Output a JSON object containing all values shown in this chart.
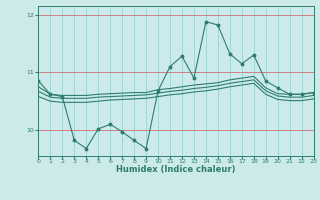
{
  "xlabel": "Humidex (Indice chaleur)",
  "bg_color": "#cceaea",
  "line_color": "#2e7d6e",
  "grid_color_h": "#d08080",
  "grid_color_v": "#90cccc",
  "x": [
    0,
    1,
    2,
    3,
    4,
    5,
    6,
    7,
    8,
    9,
    10,
    11,
    12,
    13,
    14,
    15,
    16,
    17,
    18,
    19,
    20,
    21,
    22,
    23
  ],
  "y_main": [
    10.85,
    10.62,
    10.58,
    9.82,
    9.68,
    10.02,
    10.1,
    9.97,
    9.82,
    9.68,
    10.68,
    11.1,
    11.28,
    10.9,
    11.88,
    11.82,
    11.32,
    11.15,
    11.3,
    10.85,
    10.73,
    10.62,
    10.62,
    10.65
  ],
  "y_band1": [
    10.75,
    10.62,
    10.6,
    10.6,
    10.6,
    10.62,
    10.63,
    10.64,
    10.65,
    10.65,
    10.7,
    10.72,
    10.75,
    10.78,
    10.8,
    10.82,
    10.87,
    10.9,
    10.93,
    10.73,
    10.63,
    10.62,
    10.62,
    10.65
  ],
  "y_band2": [
    10.67,
    10.57,
    10.55,
    10.55,
    10.55,
    10.57,
    10.58,
    10.59,
    10.6,
    10.61,
    10.64,
    10.67,
    10.69,
    10.72,
    10.74,
    10.77,
    10.81,
    10.84,
    10.87,
    10.68,
    10.59,
    10.57,
    10.57,
    10.6
  ],
  "y_band3": [
    10.58,
    10.5,
    10.48,
    10.48,
    10.48,
    10.5,
    10.52,
    10.53,
    10.54,
    10.55,
    10.58,
    10.61,
    10.63,
    10.66,
    10.68,
    10.71,
    10.75,
    10.78,
    10.81,
    10.62,
    10.53,
    10.51,
    10.51,
    10.54
  ],
  "xlim": [
    0,
    23
  ],
  "ylim": [
    9.55,
    12.15
  ],
  "yticks": [
    10,
    11,
    12
  ],
  "xtick_labels": [
    "0",
    "1",
    "2",
    "3",
    "4",
    "5",
    "6",
    "7",
    "8",
    "9",
    "10",
    "11",
    "12",
    "13",
    "14",
    "15",
    "16",
    "17",
    "18",
    "19",
    "20",
    "21",
    "22",
    "23"
  ]
}
